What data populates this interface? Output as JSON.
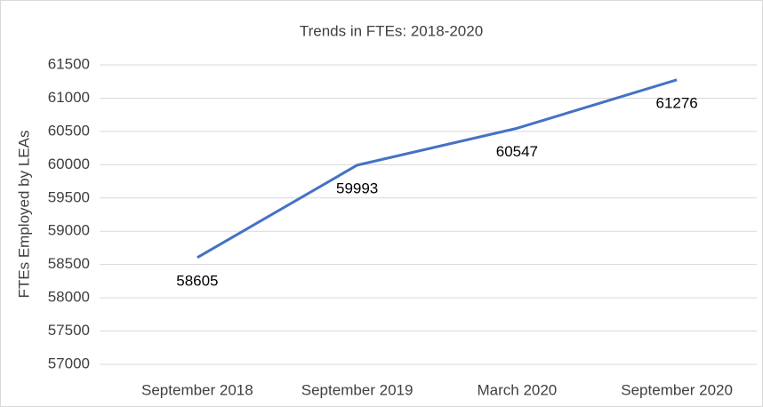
{
  "chart_data": {
    "type": "line",
    "title": "Trends in FTEs: 2018-2020",
    "y_label": "FTEs Employed by LEAs",
    "categories": [
      "September 2018",
      "September 2019",
      "March 2020",
      "September 2020"
    ],
    "series": [
      {
        "name": "FTEs",
        "color": "#4472c4",
        "values": [
          58605,
          59993,
          60547,
          61276
        ]
      }
    ],
    "ylim": [
      57000,
      61500
    ],
    "yticks": [
      57000,
      57500,
      58000,
      58500,
      59000,
      59500,
      60000,
      60500,
      61000,
      61500
    ],
    "grid": true,
    "data_labels": true
  }
}
